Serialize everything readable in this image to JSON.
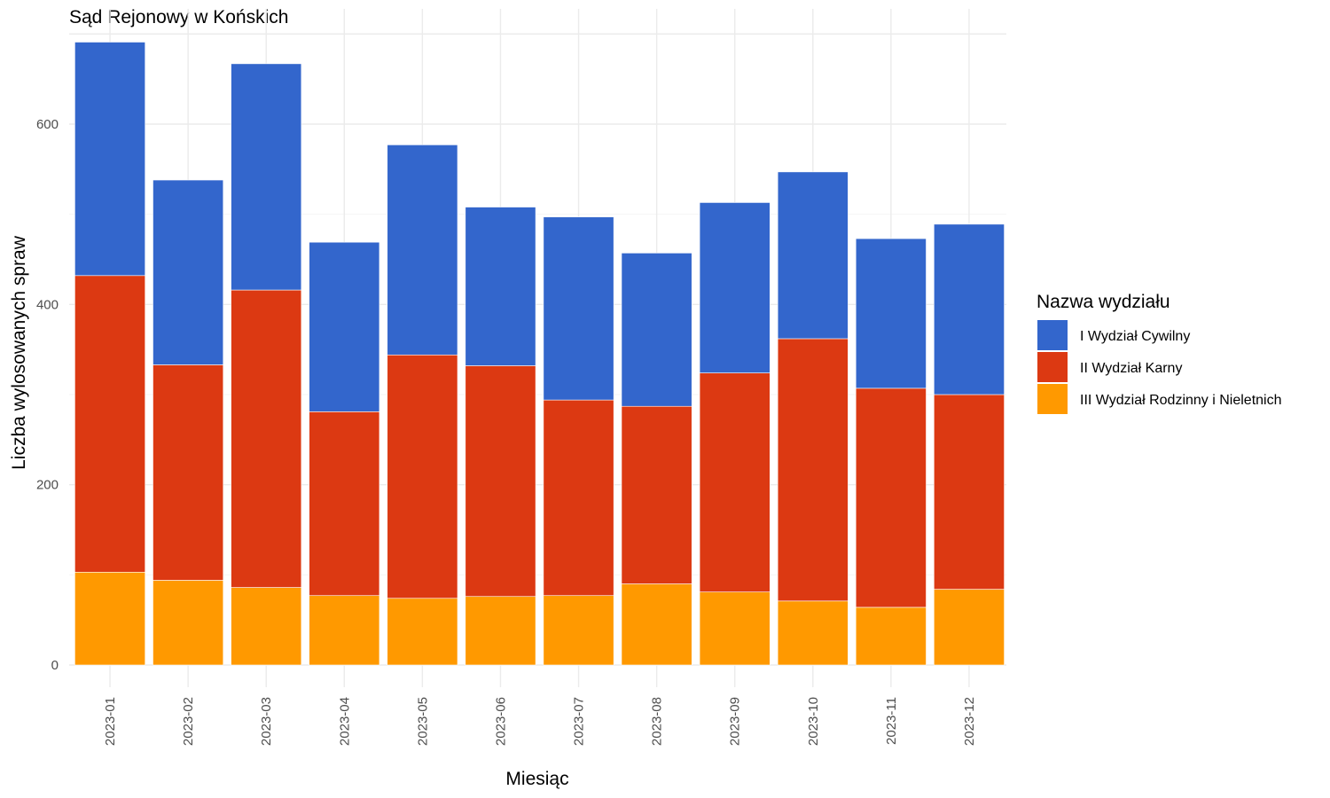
{
  "chart_data": {
    "type": "bar",
    "stacked": true,
    "title": "Sąd Rejonowy w Końskich",
    "xlabel": "Miesiąc",
    "ylabel": "Liczba wylosowanych spraw",
    "ylim": [
      0,
      700
    ],
    "y_ticks": [
      0,
      200,
      400,
      600
    ],
    "grid": true,
    "categories": [
      "2023-01",
      "2023-02",
      "2023-03",
      "2023-04",
      "2023-05",
      "2023-06",
      "2023-07",
      "2023-08",
      "2023-09",
      "2023-10",
      "2023-11",
      "2023-12"
    ],
    "legend": {
      "title": "Nazwa wydziału",
      "position": "right"
    },
    "series": [
      {
        "name": "III Wydział Rodzinny i Nieletnich",
        "color": "#FF9900",
        "values": [
          103,
          94,
          86,
          77,
          74,
          76,
          77,
          90,
          81,
          71,
          64,
          84
        ]
      },
      {
        "name": "II Wydział Karny",
        "color": "#DC3912",
        "values": [
          329,
          239,
          330,
          204,
          270,
          256,
          217,
          197,
          243,
          291,
          243,
          216
        ]
      },
      {
        "name": "I Wydział Cywilny",
        "color": "#3366CC",
        "values": [
          259,
          205,
          251,
          188,
          233,
          176,
          203,
          170,
          189,
          185,
          166,
          189
        ]
      }
    ]
  }
}
